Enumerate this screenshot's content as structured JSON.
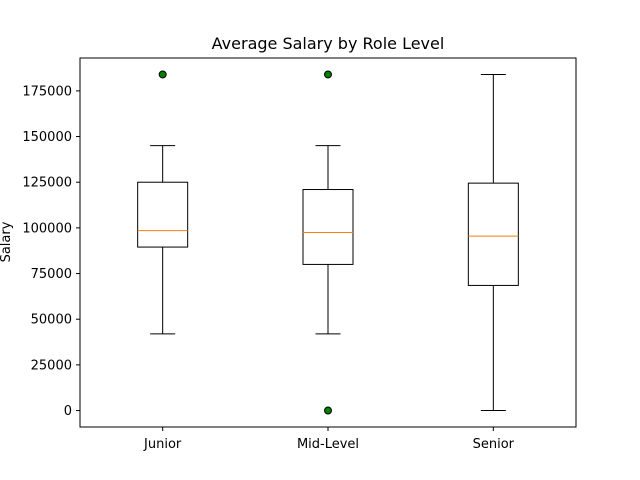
{
  "chart_data": {
    "type": "boxplot",
    "title": "Average Salary by Role Level",
    "xlabel": "",
    "ylabel": "Salary",
    "ylim": [
      -9000,
      193000
    ],
    "yticks": [
      0,
      25000,
      50000,
      75000,
      100000,
      125000,
      150000,
      175000
    ],
    "ytick_labels": [
      "0",
      "25000",
      "50000",
      "75000",
      "100000",
      "125000",
      "150000",
      "175000"
    ],
    "grid": false,
    "categories": [
      "Junior",
      "Mid-Level",
      "Senior"
    ],
    "boxes": [
      {
        "category": "Junior",
        "whisker_low": 42000,
        "q1": 89500,
        "median": 98500,
        "q3": 125000,
        "whisker_high": 145000,
        "outliers": [
          184000
        ]
      },
      {
        "category": "Mid-Level",
        "whisker_low": 42000,
        "q1": 80000,
        "median": 97500,
        "q3": 121000,
        "whisker_high": 145000,
        "outliers": [
          184000,
          0
        ]
      },
      {
        "category": "Senior",
        "whisker_low": 0,
        "q1": 68500,
        "median": 95500,
        "q3": 124500,
        "whisker_high": 184000,
        "outliers": []
      }
    ],
    "colors": {
      "box": "#000000",
      "median": "#ff7f0e",
      "outlier_fill": "#008000",
      "outlier_edge": "#000000"
    }
  }
}
